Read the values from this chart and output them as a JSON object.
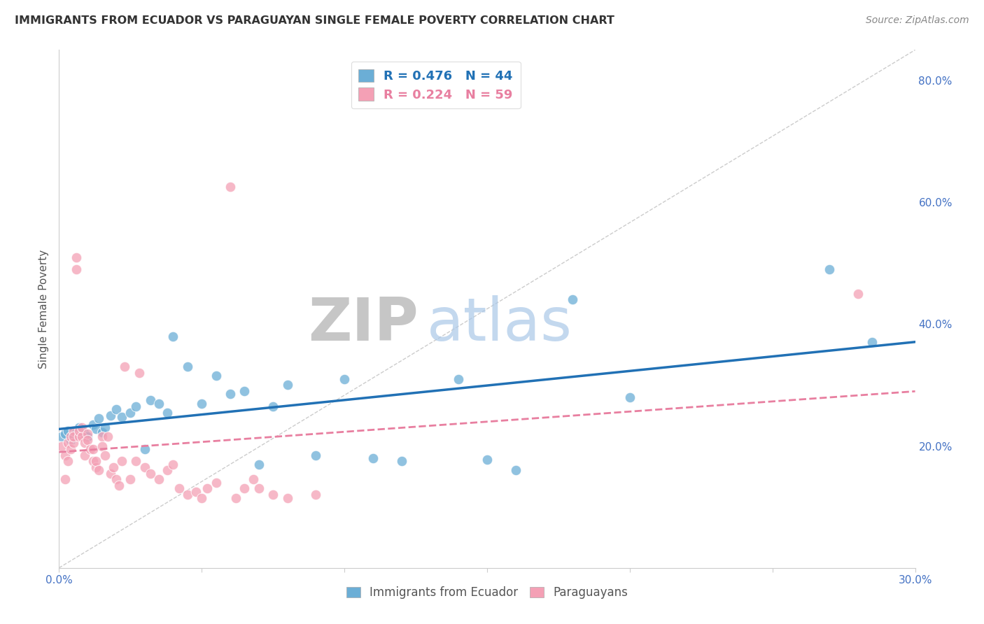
{
  "title": "IMMIGRANTS FROM ECUADOR VS PARAGUAYAN SINGLE FEMALE POVERTY CORRELATION CHART",
  "source": "Source: ZipAtlas.com",
  "ylabel": "Single Female Poverty",
  "legend_label1": "Immigrants from Ecuador",
  "legend_label2": "Paraguayans",
  "R1": 0.476,
  "N1": 44,
  "R2": 0.224,
  "N2": 59,
  "color1": "#6baed6",
  "color2": "#f4a0b5",
  "trendline1_color": "#2171b5",
  "trendline2_color": "#e87fa0",
  "xlim": [
    0.0,
    0.3
  ],
  "ylim": [
    0.0,
    0.85
  ],
  "xticks": [
    0.0,
    0.05,
    0.1,
    0.15,
    0.2,
    0.25,
    0.3
  ],
  "xtick_labels": [
    "0.0%",
    "",
    "",
    "",
    "",
    "",
    "30.0%"
  ],
  "ytick_right_labels": [
    "20.0%",
    "40.0%",
    "60.0%",
    "80.0%"
  ],
  "ytick_right_vals": [
    0.2,
    0.4,
    0.6,
    0.8
  ],
  "watermark_zip": "ZIP",
  "watermark_atlas": "atlas",
  "scatter1_x": [
    0.001,
    0.002,
    0.003,
    0.004,
    0.005,
    0.006,
    0.007,
    0.008,
    0.009,
    0.01,
    0.012,
    0.013,
    0.014,
    0.015,
    0.016,
    0.018,
    0.02,
    0.022,
    0.025,
    0.027,
    0.03,
    0.032,
    0.035,
    0.038,
    0.04,
    0.045,
    0.05,
    0.055,
    0.06,
    0.065,
    0.07,
    0.075,
    0.08,
    0.09,
    0.1,
    0.11,
    0.12,
    0.14,
    0.15,
    0.16,
    0.18,
    0.2,
    0.27,
    0.285
  ],
  "scatter1_y": [
    0.215,
    0.22,
    0.225,
    0.21,
    0.218,
    0.222,
    0.23,
    0.225,
    0.22,
    0.215,
    0.235,
    0.228,
    0.245,
    0.222,
    0.23,
    0.25,
    0.26,
    0.248,
    0.255,
    0.265,
    0.195,
    0.275,
    0.27,
    0.255,
    0.38,
    0.33,
    0.27,
    0.315,
    0.285,
    0.29,
    0.17,
    0.265,
    0.3,
    0.185,
    0.31,
    0.18,
    0.175,
    0.31,
    0.178,
    0.16,
    0.44,
    0.28,
    0.49,
    0.37
  ],
  "scatter2_x": [
    0.001,
    0.002,
    0.002,
    0.003,
    0.003,
    0.004,
    0.004,
    0.005,
    0.005,
    0.005,
    0.006,
    0.006,
    0.007,
    0.007,
    0.008,
    0.008,
    0.009,
    0.009,
    0.01,
    0.01,
    0.011,
    0.012,
    0.012,
    0.013,
    0.013,
    0.014,
    0.015,
    0.015,
    0.016,
    0.017,
    0.018,
    0.019,
    0.02,
    0.021,
    0.022,
    0.023,
    0.025,
    0.027,
    0.028,
    0.03,
    0.032,
    0.035,
    0.038,
    0.04,
    0.042,
    0.045,
    0.048,
    0.05,
    0.052,
    0.055,
    0.06,
    0.062,
    0.065,
    0.068,
    0.07,
    0.075,
    0.08,
    0.09,
    0.28
  ],
  "scatter2_y": [
    0.2,
    0.185,
    0.145,
    0.205,
    0.175,
    0.215,
    0.195,
    0.225,
    0.205,
    0.215,
    0.51,
    0.49,
    0.215,
    0.225,
    0.215,
    0.23,
    0.205,
    0.185,
    0.22,
    0.21,
    0.195,
    0.175,
    0.195,
    0.165,
    0.175,
    0.16,
    0.215,
    0.2,
    0.185,
    0.215,
    0.155,
    0.165,
    0.145,
    0.135,
    0.175,
    0.33,
    0.145,
    0.175,
    0.32,
    0.165,
    0.155,
    0.145,
    0.16,
    0.17,
    0.13,
    0.12,
    0.125,
    0.115,
    0.13,
    0.14,
    0.625,
    0.115,
    0.13,
    0.145,
    0.13,
    0.12,
    0.115,
    0.12,
    0.45
  ]
}
